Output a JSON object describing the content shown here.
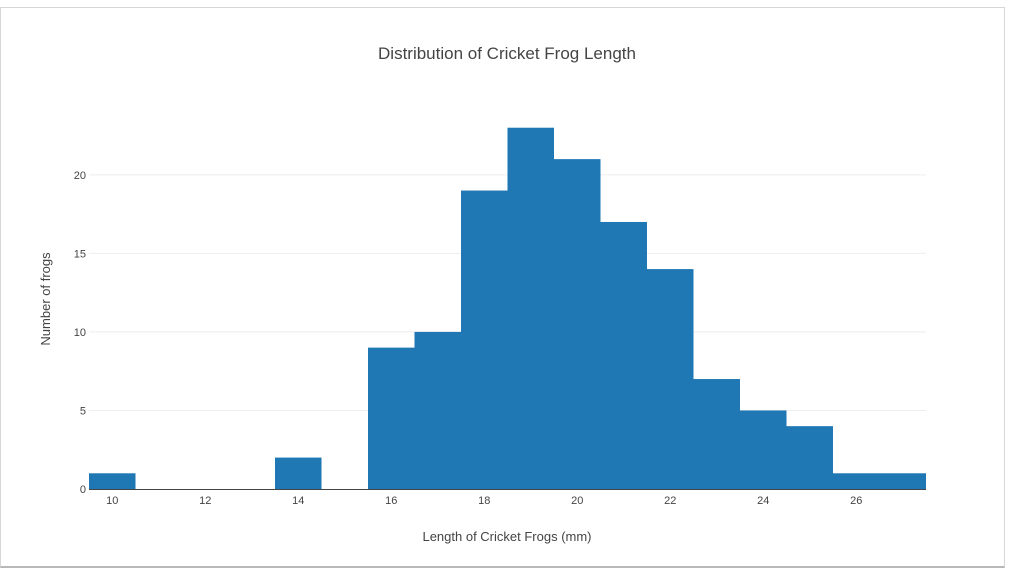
{
  "chart_data": {
    "type": "bar",
    "title": "Distribution of Cricket Frog Length",
    "xlabel": "Length of Cricket Frogs (mm)",
    "ylabel": "Number of frogs",
    "xlim": [
      9.5,
      27.5
    ],
    "ylim": [
      0,
      24
    ],
    "x_ticks": [
      10,
      12,
      14,
      16,
      18,
      20,
      22,
      24,
      26
    ],
    "y_ticks": [
      0,
      5,
      10,
      15,
      20
    ],
    "bin_width": 1,
    "bins": [
      {
        "x": 10,
        "count": 1
      },
      {
        "x": 11,
        "count": 0
      },
      {
        "x": 12,
        "count": 0
      },
      {
        "x": 13,
        "count": 0
      },
      {
        "x": 14,
        "count": 2
      },
      {
        "x": 15,
        "count": 0
      },
      {
        "x": 16,
        "count": 9
      },
      {
        "x": 17,
        "count": 10
      },
      {
        "x": 18,
        "count": 19
      },
      {
        "x": 19,
        "count": 23
      },
      {
        "x": 20,
        "count": 21
      },
      {
        "x": 21,
        "count": 17
      },
      {
        "x": 22,
        "count": 14
      },
      {
        "x": 23,
        "count": 7
      },
      {
        "x": 24,
        "count": 5
      },
      {
        "x": 25,
        "count": 4
      },
      {
        "x": 26,
        "count": 1
      },
      {
        "x": 27,
        "count": 1
      }
    ],
    "bar_color": "#1f77b4",
    "grid": true,
    "legend": "none"
  }
}
